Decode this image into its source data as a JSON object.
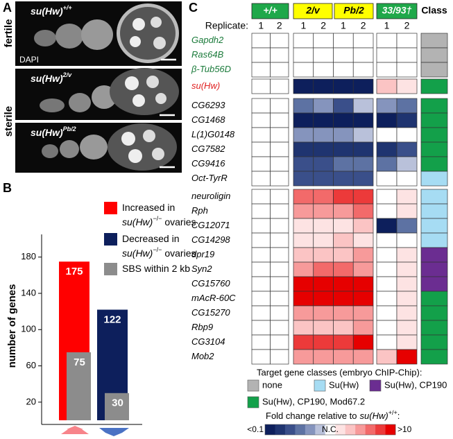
{
  "panel_a": {
    "letter": "A",
    "groups": [
      "fertile",
      "sterile"
    ],
    "stain": "DAPI",
    "images": [
      {
        "gene": "su(Hw)",
        "allele": "+/+"
      },
      {
        "gene": "su(Hw)",
        "allele": "2/v"
      },
      {
        "gene": "su(Hw)",
        "allele": "Pb/2"
      }
    ]
  },
  "chart_data": {
    "type": "bar",
    "letter": "B",
    "y_label": "number of genes",
    "categories": [
      null,
      null
    ],
    "series": [
      {
        "name": [
          "Increased in",
          "su(Hw)",
          "−/−",
          "ovaries"
        ],
        "color": "#ff0000",
        "values": [
          175,
          null
        ]
      },
      {
        "name": [
          "Decreased in",
          "su(Hw)",
          "−/−",
          "ovaries"
        ],
        "color": "#0d1f5c",
        "values": [
          null,
          122
        ]
      },
      {
        "name": [
          "SBS within 2 kb"
        ],
        "color": "#8c8c8c",
        "values": [
          75,
          30
        ]
      }
    ],
    "ylim": [
      0,
      205
    ],
    "yticks": [
      20,
      60,
      100,
      140,
      180
    ]
  },
  "heatmap": {
    "letter": "C",
    "replicate_label": "Replicate:",
    "class_label": "Class",
    "columns": [
      {
        "label": "+/+",
        "color": "#1fa84a",
        "text_color": "#ffffff",
        "replicates": [
          1,
          2
        ]
      },
      {
        "label": "2/v",
        "color": "#ffff00",
        "text_color": "#000000",
        "replicates": [
          1,
          2
        ]
      },
      {
        "label": "Pb/2",
        "color": "#ffff00",
        "text_color": "#000000",
        "replicates": [
          1,
          2
        ]
      },
      {
        "label": "33/93†",
        "color": "#1fa84a",
        "text_color": "#ffffff",
        "replicates": [
          1,
          2
        ]
      }
    ],
    "classes_title": "Target gene classes (embryo ChIP-Chip):",
    "classes": [
      {
        "name": "none",
        "color": "#b3b3b3"
      },
      {
        "name": "Su(Hw)",
        "color": "#a6dcf3"
      },
      {
        "name": "Su(Hw), CP190",
        "color": "#6b2d91"
      },
      {
        "name": "Su(Hw), CP190, Mod67.2",
        "color": "#13a04a"
      }
    ],
    "scale": {
      "title": [
        "Fold change relative to",
        "su(Hw)",
        "+/+",
        ":"
      ],
      "low": "<0.1",
      "mid": "N.C.",
      "high": ">10",
      "palette": [
        "#0d1f5c",
        "#1f3470",
        "#3a4f8a",
        "#5d72a3",
        "#8594bd",
        "#b9c1da",
        "#ffffff",
        "#fde3e3",
        "#fbc4c4",
        "#f79a9a",
        "#f26a6a",
        "#ec3a3a",
        "#e60000"
      ]
    },
    "groups": [
      {
        "label_color": "#1a7a3a",
        "rows": [
          {
            "gene": "Gapdh2",
            "class": 0,
            "levels": [
              0,
              0,
              0,
              0,
              0,
              0,
              0,
              0
            ]
          },
          {
            "gene": "Ras64B",
            "class": 0,
            "levels": [
              0,
              0,
              0,
              0,
              0,
              0,
              0,
              0
            ]
          },
          {
            "gene": "β-Tub56D",
            "class": 0,
            "levels": [
              0,
              0,
              0,
              0,
              0,
              0,
              0,
              0
            ]
          }
        ]
      },
      {
        "label_color": "#e02020",
        "rows": [
          {
            "gene": "su(Hw)",
            "class": 3,
            "levels": [
              0,
              0,
              -6,
              -6,
              -6,
              -6,
              2,
              1
            ]
          }
        ]
      },
      {
        "label_color": "#000000",
        "rows": [
          {
            "gene": "CG6293",
            "class": 3,
            "levels": [
              0,
              0,
              -3,
              -2,
              -4,
              -1,
              -2,
              -3
            ]
          },
          {
            "gene": "CG1468",
            "class": 3,
            "levels": [
              0,
              0,
              -6,
              -6,
              -6,
              -6,
              -6,
              -5
            ]
          },
          {
            "gene": "L(1)G0148",
            "class": 3,
            "levels": [
              0,
              0,
              -2,
              -2,
              -2,
              -1,
              0,
              0
            ]
          },
          {
            "gene": "CG7582",
            "class": 3,
            "levels": [
              0,
              0,
              -5,
              -5,
              -5,
              -5,
              -5,
              -4
            ]
          },
          {
            "gene": "CG9416",
            "class": 3,
            "levels": [
              0,
              0,
              -4,
              -4,
              -3,
              -3,
              -3,
              -1
            ]
          },
          {
            "gene": "Oct-TyrR",
            "class": 1,
            "levels": [
              0,
              0,
              -4,
              -4,
              -4,
              -4,
              0,
              0
            ]
          }
        ]
      },
      {
        "label_color": "#000000",
        "rows": [
          {
            "gene": "neuroligin",
            "class": 1,
            "levels": [
              0,
              0,
              4,
              4,
              5,
              5,
              0,
              1
            ]
          },
          {
            "gene": "Rph",
            "class": 1,
            "levels": [
              0,
              0,
              3,
              3,
              3,
              4,
              0,
              1
            ]
          },
          {
            "gene": "CG12071",
            "class": 1,
            "levels": [
              0,
              0,
              1,
              1,
              1,
              2,
              -6,
              -3
            ]
          },
          {
            "gene": "CG14298",
            "class": 1,
            "levels": [
              0,
              0,
              1,
              1,
              2,
              1,
              0,
              0
            ]
          },
          {
            "gene": "dpr19",
            "class": 2,
            "levels": [
              0,
              0,
              2,
              2,
              2,
              3,
              0,
              1
            ]
          },
          {
            "gene": "Syn2",
            "class": 2,
            "levels": [
              0,
              0,
              3,
              4,
              4,
              3,
              0,
              1
            ]
          },
          {
            "gene": "CG15760",
            "class": 2,
            "levels": [
              0,
              0,
              6,
              6,
              6,
              6,
              0,
              1
            ]
          },
          {
            "gene": "mAcR-60C",
            "class": 3,
            "levels": [
              0,
              0,
              6,
              6,
              6,
              6,
              0,
              1
            ]
          },
          {
            "gene": "CG15270",
            "class": 3,
            "levels": [
              0,
              0,
              3,
              3,
              3,
              3,
              0,
              1
            ]
          },
          {
            "gene": "Rbp9",
            "class": 3,
            "levels": [
              0,
              0,
              2,
              2,
              2,
              3,
              0,
              1
            ]
          },
          {
            "gene": "CG3104",
            "class": 3,
            "levels": [
              0,
              0,
              5,
              5,
              5,
              6,
              0,
              1
            ]
          },
          {
            "gene": "Mob2",
            "class": 3,
            "levels": [
              0,
              0,
              3,
              3,
              3,
              3,
              2,
              6
            ]
          }
        ]
      }
    ]
  }
}
